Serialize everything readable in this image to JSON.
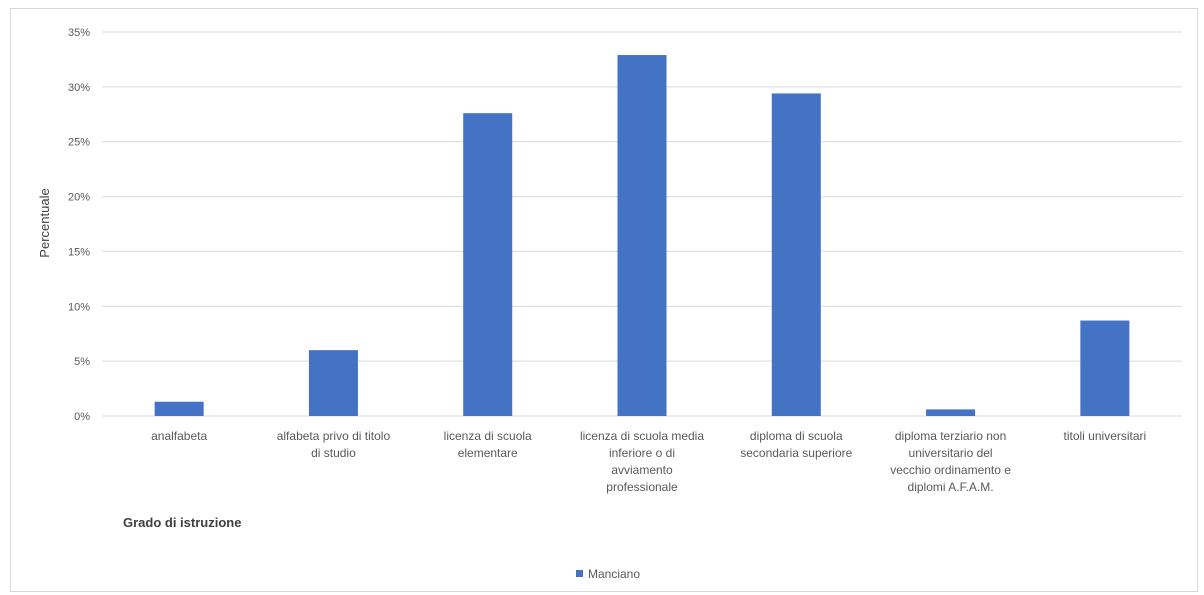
{
  "chart_data": {
    "type": "bar",
    "categories": [
      [
        "analfabeta"
      ],
      [
        "alfabeta privo di titolo",
        "di studio"
      ],
      [
        "licenza di scuola",
        "elementare"
      ],
      [
        "licenza di scuola media",
        "inferiore o di",
        "avviamento",
        "professionale"
      ],
      [
        "diploma di scuola",
        "secondaria superiore"
      ],
      [
        "diploma terziario non",
        "universitario del",
        "vecchio ordinamento e",
        "diplomi A.F.A.M."
      ],
      [
        "titoli universitari"
      ]
    ],
    "series": [
      {
        "name": "Manciano",
        "color": "#4472c4",
        "values": [
          1.3,
          6.0,
          27.6,
          32.9,
          29.4,
          0.6,
          8.7
        ]
      }
    ],
    "ylabel": "Percentuale",
    "xlabel": "Grado di istruzione",
    "ylim": [
      0,
      35
    ],
    "yticks": [
      0,
      5,
      10,
      15,
      20,
      25,
      30,
      35
    ],
    "ytick_labels": [
      "0%",
      "5%",
      "10%",
      "15%",
      "20%",
      "25%",
      "30%",
      "35%"
    ],
    "grid": true,
    "legend_position": "bottom"
  }
}
